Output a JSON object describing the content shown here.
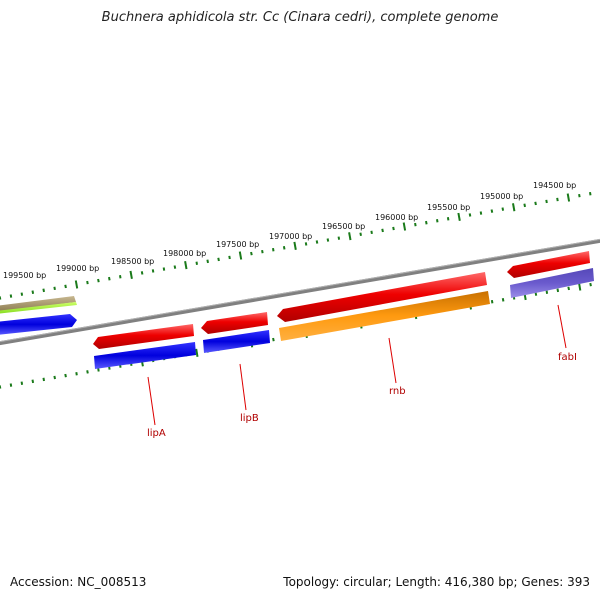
{
  "title": "Buchnera aphidicola str. Cc (Cinara cedri), complete genome",
  "footer": {
    "accession": "Accession: NC_008513",
    "summary": "Topology: circular; Length: 416,380 bp; Genes: 393"
  },
  "ruler": {
    "labels": [
      "199500 bp",
      "199000 bp",
      "198500 bp",
      "198000 bp",
      "197500 bp",
      "197000 bp",
      "196500 bp",
      "196000 bp",
      "195500 bp",
      "195000 bp",
      "194500 bp"
    ]
  },
  "genes": [
    {
      "name": "lipA"
    },
    {
      "name": "lipB"
    },
    {
      "name": "rnb"
    },
    {
      "name": "fabI"
    }
  ],
  "colors": {
    "backbone": "#808080",
    "tick_green": "#1a7a1a",
    "red": "#ee0000",
    "blue": "#0000dd",
    "orange": "#ff8c00",
    "purple": "#6a5acd",
    "olive": "#a09060",
    "lime": "#99ee33",
    "label_red": "#b00000"
  }
}
